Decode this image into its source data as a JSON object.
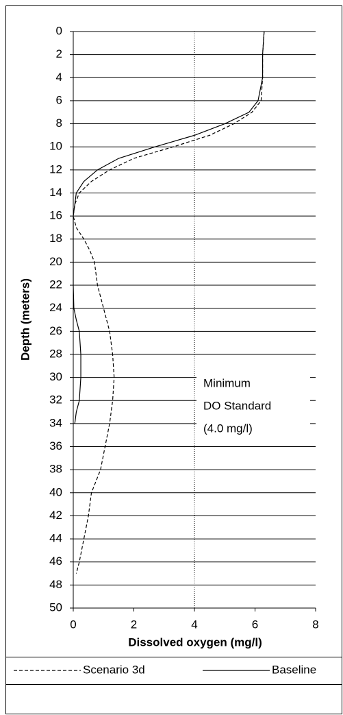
{
  "chart_data": {
    "type": "profile",
    "ylabel": "Depth (meters)",
    "xlabel": "Dissolved oxygen (mg/l)",
    "xlim": [
      0,
      8
    ],
    "xticks": [
      0,
      2,
      4,
      6,
      8
    ],
    "ylim": [
      0,
      50
    ],
    "yticks": [
      0,
      2,
      4,
      6,
      8,
      10,
      12,
      14,
      16,
      18,
      20,
      22,
      24,
      26,
      28,
      30,
      32,
      34,
      36,
      38,
      40,
      42,
      44,
      46,
      48,
      50
    ],
    "y_inverted": true,
    "grid": true,
    "reference_line": {
      "value": 4,
      "label": [
        "Minimum",
        "DO Standard",
        "(4.0 mg/l)"
      ]
    },
    "series": [
      {
        "name": "Scenario 3d",
        "color": "#000000",
        "dash": true,
        "depths": [
          0,
          2,
          4,
          6,
          7,
          8,
          9,
          10,
          11,
          12,
          13,
          14,
          15,
          16,
          17,
          18,
          19,
          20,
          22,
          24,
          26,
          28,
          30,
          32,
          34,
          36,
          38,
          40,
          42,
          44,
          46,
          47
        ],
        "values": [
          6.3,
          6.25,
          6.25,
          6.2,
          5.9,
          5.3,
          4.5,
          3.3,
          2.0,
          1.2,
          0.6,
          0.2,
          0.05,
          0.0,
          0.1,
          0.35,
          0.55,
          0.7,
          0.8,
          1.0,
          1.2,
          1.3,
          1.35,
          1.3,
          1.2,
          1.05,
          0.9,
          0.6,
          0.5,
          0.35,
          0.2,
          0.1
        ]
      },
      {
        "name": "Baseline",
        "color": "#000000",
        "dash": false,
        "depths": [
          0,
          2,
          4,
          6,
          7,
          8,
          9,
          10,
          11,
          12,
          13,
          14,
          15,
          16,
          18,
          20,
          22,
          24,
          25,
          26,
          28,
          30,
          32,
          33,
          34
        ],
        "values": [
          6.3,
          6.25,
          6.25,
          6.1,
          5.8,
          5.0,
          4.0,
          2.7,
          1.5,
          0.8,
          0.35,
          0.1,
          0.05,
          0.0,
          0.0,
          0.0,
          0.0,
          0.02,
          0.1,
          0.2,
          0.25,
          0.25,
          0.2,
          0.1,
          0.05
        ]
      }
    ]
  }
}
